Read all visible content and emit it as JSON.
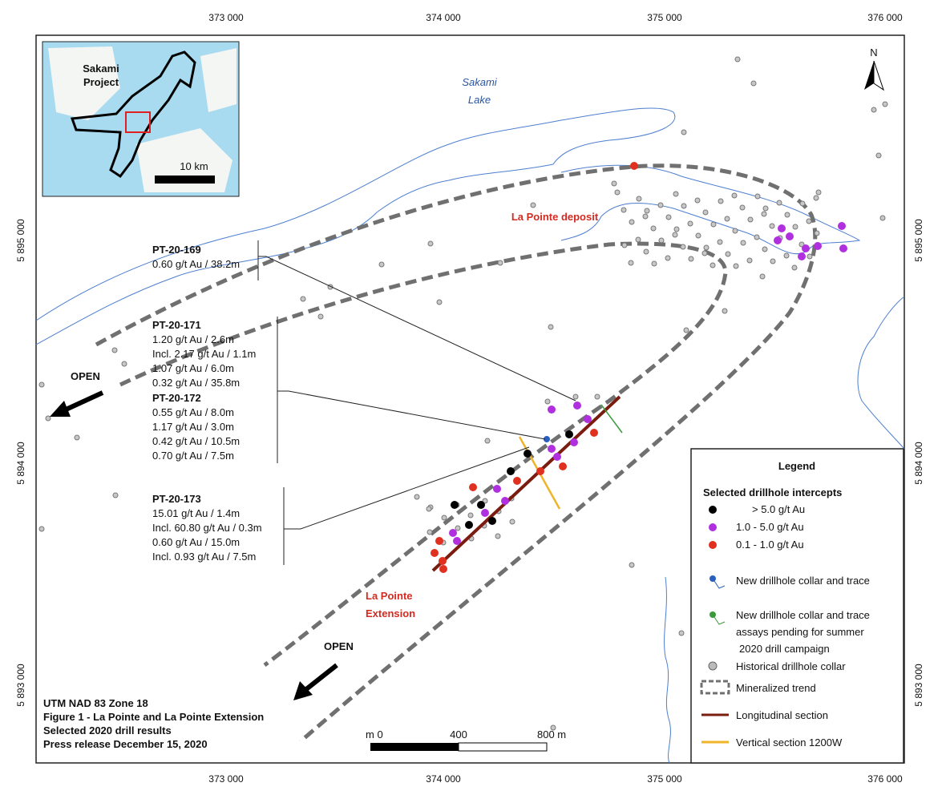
{
  "grid_labels": {
    "easting": [
      "373 000",
      "374 000",
      "375 000",
      "376 000"
    ],
    "northing": [
      "5 895 000",
      "5 894 000",
      "5 893 000"
    ]
  },
  "inset": {
    "title": [
      "Sakami",
      "Project"
    ],
    "scale": "10 km"
  },
  "north_arrow": "N",
  "labels": {
    "lake": [
      "Sakami",
      "Lake"
    ],
    "deposit": "La Pointe deposit",
    "extension": [
      "La Pointe",
      "Extension"
    ],
    "open": "OPEN"
  },
  "intercepts": [
    {
      "hole": "PT-20-169",
      "results": [
        "0.60 g/t Au / 38.2m"
      ]
    },
    {
      "hole": "PT-20-171",
      "results": [
        "1.20 g/t Au / 2.6m",
        "Incl. 2.17 g/t Au / 1.1m",
        "1.07 g/t Au / 6.0m",
        "0.32 g/t Au / 35.8m"
      ]
    },
    {
      "hole": "PT-20-172",
      "results": [
        "0.55 g/t Au / 8.0m",
        "1.17 g/t Au / 3.0m",
        "0.42 g/t Au / 10.5m",
        "0.70 g/t Au / 7.5m"
      ]
    },
    {
      "hole": "PT-20-173",
      "results": [
        "15.01 g/t Au / 1.4m",
        "Incl. 60.80 g/t Au / 0.3m",
        "0.60 g/t Au / 15.0m",
        "Incl. 0.93 g/t Au / 7.5m"
      ]
    }
  ],
  "legend": {
    "title": "Legend",
    "subtitle": "Selected drillhole intercepts",
    "grades": [
      "> 5.0 g/t Au",
      "1.0 - 5.0 g/t Au",
      "0.1 - 1.0 g/t Au"
    ],
    "new_collar": "New drillhole collar and trace",
    "pending": [
      "New drillhole collar and trace",
      "assays pending for summer",
      "2020 drill campaign"
    ],
    "historical": "Historical drillhole collar",
    "trend": "Mineralized trend",
    "longitudinal": "Longitudinal section",
    "vertical": "Vertical section 1200W"
  },
  "scale_bar": [
    "m 0",
    "400",
    "800 m"
  ],
  "caption": [
    "UTM NAD 83 Zone 18",
    "Figure 1 - La Pointe and La Pointe Extension",
    "Selected 2020 drill results",
    "Press release December 15, 2020"
  ]
}
